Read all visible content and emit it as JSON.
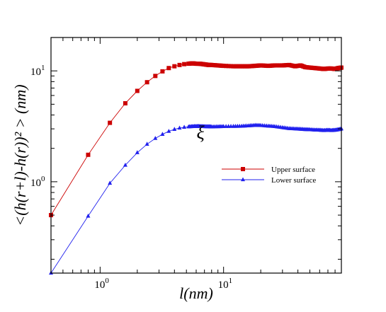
{
  "chart_data": {
    "type": "line",
    "title": "",
    "xlabel": "l(nm)",
    "ylabel": "<(h(r+l)-h(r))² > (nm)",
    "xscale": "log",
    "yscale": "log",
    "xlim": [
      0.4,
      90
    ],
    "ylim": [
      0.15,
      20
    ],
    "grid": false,
    "legend_position": "right-center",
    "x_ticks": [
      {
        "value": 1,
        "base": "10",
        "exp": "0"
      },
      {
        "value": 10,
        "base": "10",
        "exp": "1"
      }
    ],
    "y_ticks": [
      {
        "value": 1,
        "base": "10",
        "exp": "0"
      },
      {
        "value": 10,
        "base": "10",
        "exp": "1"
      }
    ],
    "annotations": [
      {
        "text": "ξ",
        "x": 6.5,
        "y": 3.0
      }
    ],
    "series": [
      {
        "name": "Upper surface",
        "color": "#cc0000",
        "marker": "square",
        "x": [
          0.4,
          0.8,
          1.2,
          1.6,
          2.0,
          2.4,
          2.8,
          3.2,
          3.6,
          4.0,
          4.4,
          4.8,
          5.2,
          5.6,
          6.0,
          6.4,
          6.8,
          7.2,
          7.6,
          8.0,
          9.0,
          10.0,
          12.0,
          14.0,
          16.0,
          18.0,
          20.0,
          23.0,
          26.0,
          30.0,
          34.0,
          38.0,
          42.0,
          46.0,
          50.0,
          55.0,
          60.0,
          65.0,
          70.0,
          75.0,
          80.0,
          85.0,
          90.0
        ],
        "y": [
          0.5,
          1.75,
          3.4,
          5.1,
          6.6,
          7.9,
          9.0,
          9.9,
          10.6,
          11.0,
          11.3,
          11.5,
          11.6,
          11.7,
          11.6,
          11.6,
          11.5,
          11.4,
          11.3,
          11.3,
          11.2,
          11.1,
          11.0,
          11.0,
          11.0,
          11.1,
          11.2,
          11.1,
          11.2,
          11.2,
          11.3,
          11.0,
          11.2,
          10.8,
          10.7,
          10.6,
          10.5,
          10.4,
          10.5,
          10.5,
          10.4,
          10.6,
          10.7
        ]
      },
      {
        "name": "Lower surface",
        "color": "#2020ee",
        "marker": "triangle",
        "x": [
          0.4,
          0.8,
          1.2,
          1.6,
          2.0,
          2.4,
          2.8,
          3.2,
          3.6,
          4.0,
          4.4,
          4.8,
          5.2,
          5.6,
          6.0,
          6.4,
          6.8,
          7.2,
          7.6,
          8.0,
          9.0,
          10.0,
          12.0,
          14.0,
          16.0,
          18.0,
          20.0,
          23.0,
          26.0,
          30.0,
          34.0,
          38.0,
          42.0,
          46.0,
          50.0,
          55.0,
          60.0,
          65.0,
          70.0,
          75.0,
          80.0,
          85.0,
          90.0
        ],
        "y": [
          0.15,
          0.49,
          0.97,
          1.41,
          1.83,
          2.18,
          2.46,
          2.68,
          2.85,
          2.97,
          3.05,
          3.1,
          3.13,
          3.15,
          3.16,
          3.16,
          3.15,
          3.14,
          3.14,
          3.13,
          3.14,
          3.15,
          3.16,
          3.17,
          3.2,
          3.23,
          3.22,
          3.18,
          3.15,
          3.08,
          3.02,
          3.0,
          2.98,
          2.96,
          2.95,
          2.93,
          2.92,
          2.9,
          2.92,
          2.9,
          2.92,
          2.95,
          3.0
        ]
      }
    ]
  }
}
